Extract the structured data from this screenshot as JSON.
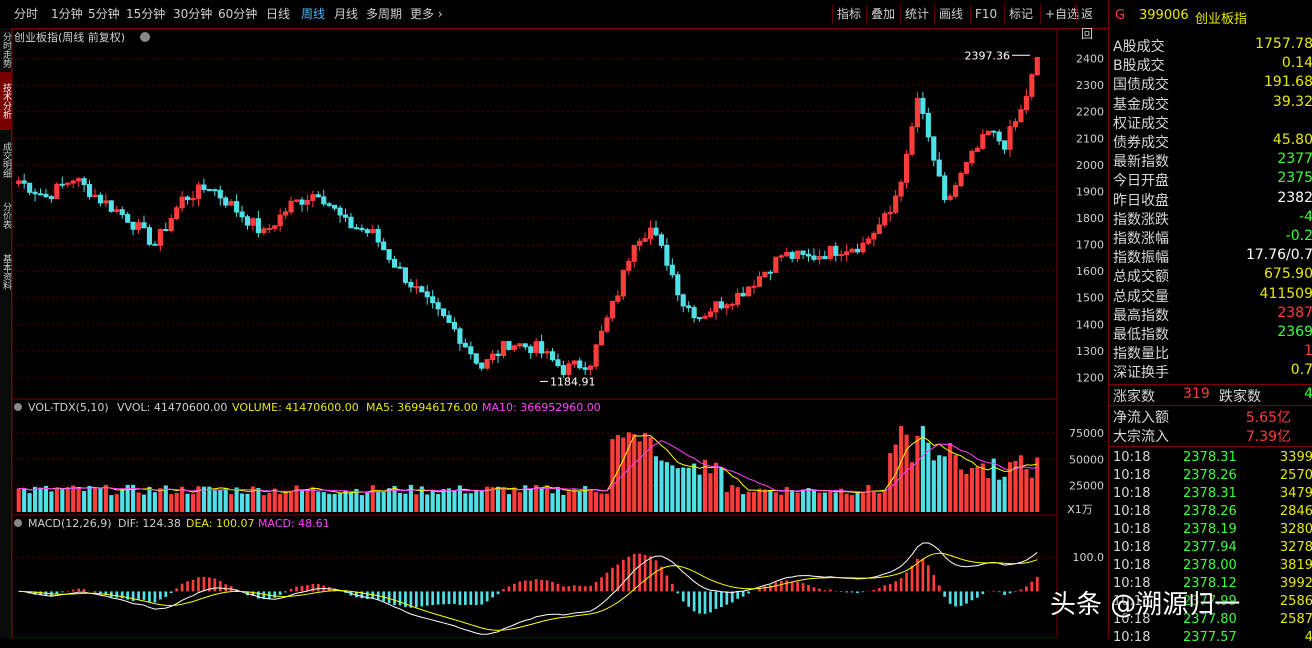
{
  "toolbar": {
    "periods": [
      "分时",
      "1分钟",
      "5分钟",
      "15分钟",
      "30分钟",
      "60分钟",
      "日线",
      "周线",
      "月线",
      "多周期",
      "更多 ›"
    ],
    "active_index": 7,
    "right_buttons": [
      "指标",
      "叠加",
      "统计",
      "画线",
      "F10",
      "标记",
      "+自选",
      "返回"
    ]
  },
  "side_tabs": [
    "分时走势",
    "技术分析",
    "成交明细",
    "分价表",
    "基本资料"
  ],
  "chart_header": {
    "title": "创业板指(周线 前复权)"
  },
  "chart_data": [
    {
      "type": "candlestick",
      "ylim": [
        1130,
        2470
      ],
      "yticks": [
        1200,
        1300,
        1400,
        1500,
        1600,
        1700,
        1800,
        1900,
        2000,
        2100,
        2200,
        2300,
        2400
      ],
      "annotations": [
        {
          "text": "2397.36",
          "value": 2397.36,
          "index": 106
        },
        {
          "text": "1184.91",
          "value": 1184.91,
          "index": 55
        }
      ],
      "colors": {
        "up": "#ff3c3c",
        "down": "#50e0e8"
      }
    },
    {
      "type": "bar",
      "name": "VOL-TDX(5,10)",
      "labels": {
        "vol": "VVOL: 41470600.00",
        "volume": "VOLUME: 41470600.00",
        "ma5": "MA5: 369946176.00",
        "ma10": "MA10: 366952960.00"
      },
      "ylim": [
        0,
        95000
      ],
      "yticks": [
        25000,
        50000,
        75000
      ],
      "unit": "X1万",
      "colors": {
        "ma5": "#ffff00",
        "ma10": "#ff44ff",
        "label": "#e0e000"
      }
    },
    {
      "type": "line",
      "name": "MACD(12,26,9)",
      "labels": {
        "dif": "DIF: 124.38",
        "dea": "DEA: 100.07",
        "macd": "MACD: 48.61"
      },
      "ylim": [
        -130,
        185
      ],
      "yticks": [
        100.0
      ],
      "colors": {
        "dif": "#ffffff",
        "dea": "#ffff00",
        "macd": "#ff44ff"
      }
    }
  ],
  "panel": {
    "code": "399006",
    "name": "创业板指",
    "code_prefix": "G",
    "rows": [
      {
        "label": "A股成交",
        "value": "1757.78",
        "color": "#e8e800"
      },
      {
        "label": "B股成交",
        "value": "0.14",
        "color": "#e8e800"
      },
      {
        "label": "国债成交",
        "value": "191.68",
        "color": "#e8e800"
      },
      {
        "label": "基金成交",
        "value": "39.32",
        "color": "#e8e800"
      },
      {
        "label": "权证成交",
        "value": "",
        "color": "#e8e800"
      },
      {
        "label": "债券成交",
        "value": "45.80",
        "color": "#e8e800"
      },
      {
        "label": "最新指数",
        "value": "2377",
        "color": "#3cff3c"
      },
      {
        "label": "今日开盘",
        "value": "2375",
        "color": "#3cff3c"
      },
      {
        "label": "昨日收盘",
        "value": "2382",
        "color": "#ffffff"
      },
      {
        "label": "指数涨跌",
        "value": "-4",
        "color": "#3cff3c"
      },
      {
        "label": "指数涨幅",
        "value": "-0.2",
        "color": "#3cff3c"
      },
      {
        "label": "指数振幅",
        "value": "17.76/0.7",
        "color": "#ffffff"
      },
      {
        "label": "总成交额",
        "value": "675.90",
        "color": "#e8e800"
      },
      {
        "label": "总成交量",
        "value": "411509",
        "color": "#e8e800"
      },
      {
        "label": "最高指数",
        "value": "2387",
        "color": "#ff3c3c"
      },
      {
        "label": "最低指数",
        "value": "2369",
        "color": "#3cff3c"
      },
      {
        "label": "指数量比",
        "value": "1",
        "color": "#ff3c3c"
      },
      {
        "label": "深证换手",
        "value": "0.7",
        "color": "#e8e800"
      }
    ],
    "up_label": "涨家数",
    "up_count": "319",
    "down_label": "跌家数",
    "down_count": "4",
    "flow": [
      {
        "label": "净流入额",
        "value": "5.65亿",
        "color": "#ff3c3c"
      },
      {
        "label": "大宗流入",
        "value": "7.39亿",
        "color": "#ff3c3c"
      }
    ],
    "ticks": [
      {
        "time": "10:18",
        "price": "2378.31",
        "vol": "3399"
      },
      {
        "time": "10:18",
        "price": "2378.26",
        "vol": "2570"
      },
      {
        "time": "10:18",
        "price": "2378.31",
        "vol": "3479"
      },
      {
        "time": "10:18",
        "price": "2378.26",
        "vol": "2846"
      },
      {
        "time": "10:18",
        "price": "2378.19",
        "vol": "3280"
      },
      {
        "time": "10:18",
        "price": "2377.94",
        "vol": "3278"
      },
      {
        "time": "10:18",
        "price": "2378.00",
        "vol": "3819"
      },
      {
        "time": "10:18",
        "price": "2378.12",
        "vol": "3992"
      },
      {
        "time": "10:18",
        "price": "2377.99",
        "vol": "2586"
      },
      {
        "time": "10:18",
        "price": "2377.80",
        "vol": "2587"
      },
      {
        "time": "10:18",
        "price": "2377.57",
        "vol": "4"
      }
    ]
  },
  "watermark": "头条 @溯源归一"
}
